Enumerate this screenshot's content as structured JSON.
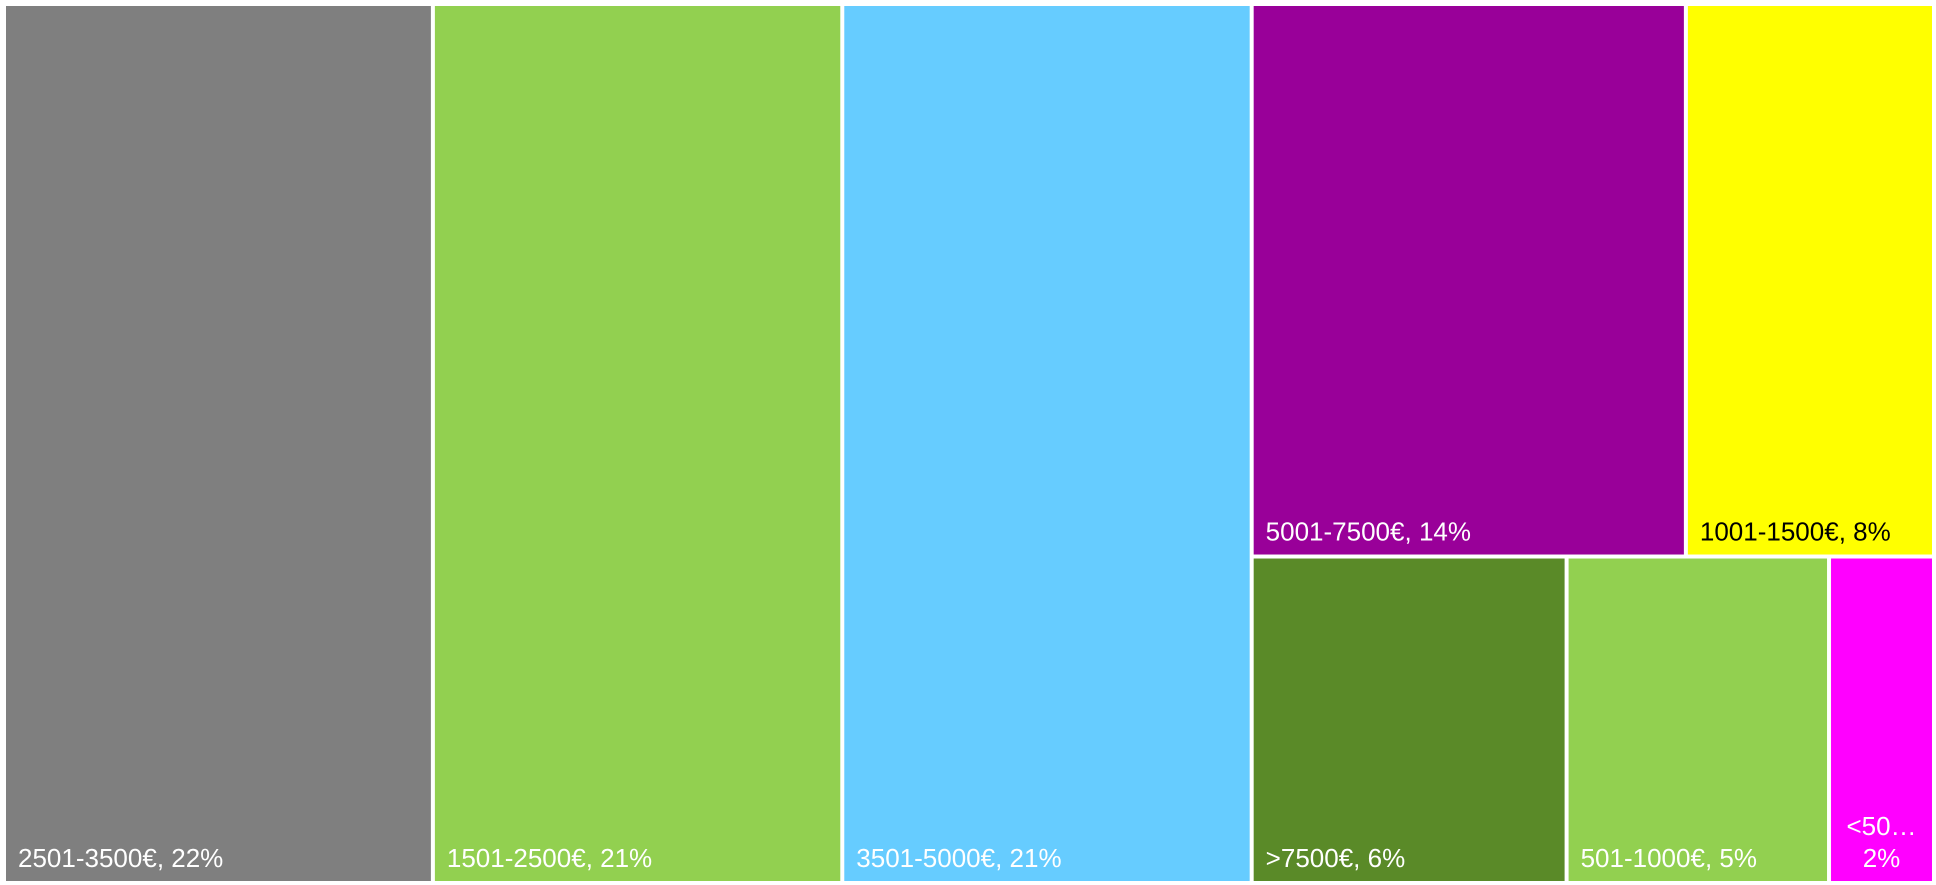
{
  "chart_data": {
    "type": "treemap",
    "categories": [
      "2501-3500€",
      "1501-2500€",
      "3501-5000€",
      "5001-7500€",
      "1001-1500€",
      ">7500€",
      "501-1000€",
      "<50…"
    ],
    "values": [
      22,
      21,
      21,
      14,
      8,
      6,
      5,
      2
    ],
    "value_labels": [
      "22%",
      "21%",
      "21%",
      "14%",
      "8%",
      "6%",
      "5%",
      "2%"
    ],
    "separator": ", ",
    "colors": [
      "#7f7f7f",
      "#92d050",
      "#66ccff",
      "#990099",
      "#ffff00",
      "#5a8a28",
      "#92d050",
      "#ff00ff"
    ],
    "label_colors": [
      "#ffffff",
      "#ffffff",
      "#ffffff",
      "#ffffff",
      "#000000",
      "#ffffff",
      "#ffffff",
      "#ffffff"
    ]
  }
}
